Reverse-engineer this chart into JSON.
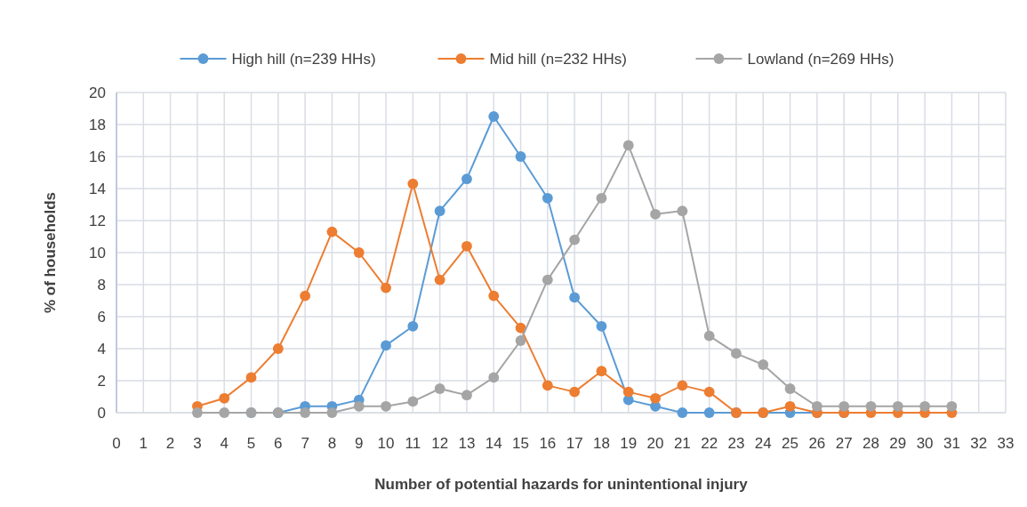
{
  "chart_data": {
    "type": "line",
    "xlabel": "Number of potential hazards for unintentional  injury",
    "ylabel": "% of households",
    "x": [
      3,
      4,
      5,
      6,
      7,
      8,
      9,
      10,
      11,
      12,
      13,
      14,
      15,
      16,
      17,
      18,
      19,
      20,
      21,
      22,
      23,
      24,
      25,
      26,
      27,
      28,
      29,
      30,
      31
    ],
    "series": [
      {
        "name": "High hill (n=239 HHs)",
        "color": "#5b9bd5",
        "values": [
          null,
          null,
          0,
          0,
          0.4,
          0.4,
          0.8,
          4.2,
          5.4,
          12.6,
          14.6,
          18.5,
          16,
          13.4,
          7.2,
          5.4,
          0.8,
          0.4,
          0,
          0,
          0,
          0,
          0,
          0,
          0,
          null,
          null,
          null,
          null
        ]
      },
      {
        "name": "Mid hill (n=232 HHs)",
        "color": "#ed7d31",
        "values": [
          0.4,
          0.9,
          2.2,
          4,
          7.3,
          11.3,
          10,
          7.8,
          14.3,
          8.3,
          10.4,
          7.3,
          5.3,
          1.7,
          1.3,
          2.6,
          1.3,
          0.9,
          1.7,
          1.3,
          0,
          0,
          0.4,
          0,
          0,
          0,
          0,
          0,
          0
        ]
      },
      {
        "name": "Lowland (n=269 HHs)",
        "color": "#a5a5a5",
        "values": [
          0,
          0,
          0,
          0,
          0,
          0,
          0.4,
          0.4,
          0.7,
          1.5,
          1.1,
          2.2,
          4.5,
          8.3,
          10.8,
          13.4,
          16.7,
          12.4,
          12.6,
          4.8,
          3.7,
          3,
          1.5,
          0.4,
          0.4,
          0.4,
          0.4,
          0.4,
          0.4
        ]
      }
    ],
    "xlim": [
      0,
      33
    ],
    "xticks": [
      0,
      1,
      2,
      3,
      4,
      5,
      6,
      7,
      8,
      9,
      10,
      11,
      12,
      13,
      14,
      15,
      16,
      17,
      18,
      19,
      20,
      21,
      22,
      23,
      24,
      25,
      26,
      27,
      28,
      29,
      30,
      31,
      32,
      33
    ],
    "ylim": [
      0,
      20
    ],
    "yticks": [
      0,
      2,
      4,
      6,
      8,
      10,
      12,
      14,
      16,
      18,
      20
    ],
    "grid": true,
    "legend": "top",
    "marker": "circle",
    "line_style": "solid"
  }
}
